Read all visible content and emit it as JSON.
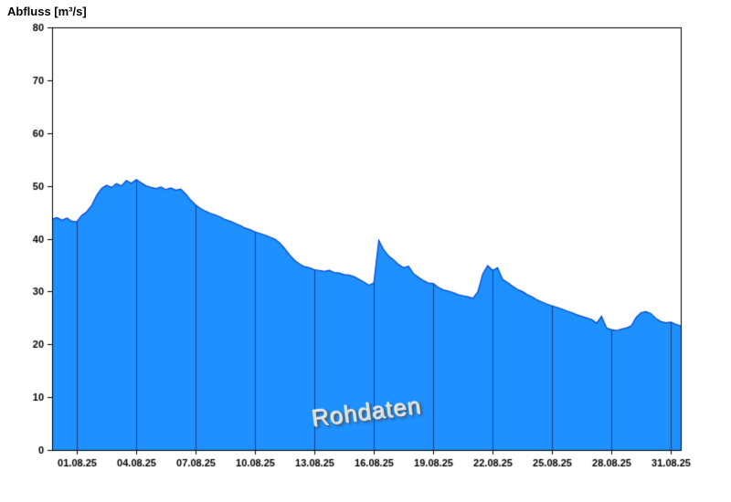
{
  "chart_data": {
    "type": "area",
    "title": "Abfluss [m³/s]",
    "watermark": "Rohdaten",
    "xlabel": "",
    "ylabel": "Abfluss [m³/s]",
    "y_range": [
      0,
      80
    ],
    "y_ticks": [
      0,
      10,
      20,
      30,
      40,
      50,
      60,
      70,
      80
    ],
    "x_range": [
      -0.25,
      31.5
    ],
    "x_ticks": [
      1,
      4,
      7,
      10,
      13,
      16,
      19,
      22,
      25,
      28,
      31
    ],
    "x_tick_labels": [
      "01.08.25",
      "04.08.25",
      "07.08.25",
      "10.08.25",
      "13.08.25",
      "16.08.25",
      "19.08.25",
      "22.08.25",
      "25.08.25",
      "28.08.25",
      "31.08.25"
    ],
    "grid": "vertical-gridlines-clipped-to-area",
    "legend": "none",
    "colors": {
      "fill": "#1E90FF",
      "line": "#0047CC",
      "grid": "rgba(0,0,40,0.55)",
      "axis": "#000000",
      "background": "#ffffff"
    },
    "series": [
      {
        "name": "Abfluss Rohdaten",
        "x_start": -0.25,
        "x_step": 0.25,
        "y": [
          43.7,
          44.0,
          43.5,
          43.9,
          43.3,
          43.2,
          44.4,
          45.1,
          46.3,
          48.2,
          49.5,
          50.1,
          49.7,
          50.4,
          50.0,
          51.0,
          50.5,
          51.2,
          50.6,
          50.0,
          49.7,
          49.5,
          49.8,
          49.3,
          49.6,
          49.2,
          49.4,
          48.5,
          47.3,
          46.4,
          45.7,
          45.2,
          44.8,
          44.5,
          44.1,
          43.6,
          43.3,
          42.9,
          42.5,
          42.0,
          41.7,
          41.3,
          41.0,
          40.7,
          40.3,
          39.9,
          39.2,
          38.1,
          36.9,
          35.9,
          35.2,
          34.7,
          34.5,
          34.1,
          34.0,
          33.8,
          34.0,
          33.6,
          33.5,
          33.2,
          33.1,
          32.8,
          32.3,
          31.8,
          31.2,
          31.6,
          39.7,
          37.9,
          36.7,
          36.0,
          35.1,
          34.5,
          34.8,
          33.4,
          32.7,
          32.1,
          31.6,
          31.5,
          30.8,
          30.3,
          30.1,
          29.8,
          29.4,
          29.2,
          29.0,
          28.7,
          29.9,
          33.3,
          34.9,
          34.0,
          34.5,
          32.3,
          31.7,
          31.0,
          30.4,
          30.0,
          29.4,
          29.0,
          28.4,
          28.0,
          27.6,
          27.3,
          27.0,
          26.7,
          26.3,
          26.0,
          25.6,
          25.3,
          25.0,
          24.7,
          24.0,
          25.3,
          23.1,
          22.8,
          22.6,
          22.9,
          23.1,
          23.5,
          25.1,
          26.0,
          26.2,
          25.8,
          24.9,
          24.3,
          24.1,
          24.2,
          23.8,
          23.5
        ]
      }
    ]
  }
}
